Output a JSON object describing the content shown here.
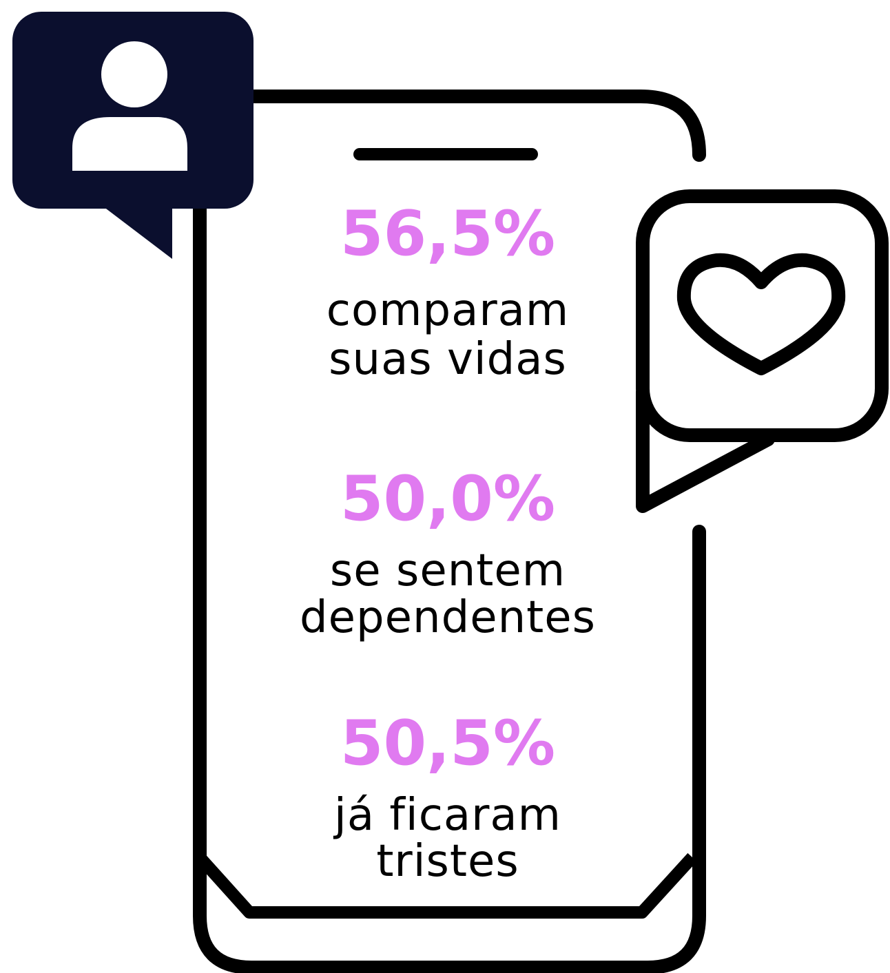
{
  "stats": [
    {
      "value": "56,5%",
      "lines": [
        "comparam",
        "suas vidas"
      ]
    },
    {
      "value": "50,0%",
      "lines": [
        "se sentem",
        "dependentes"
      ]
    },
    {
      "value": "50,5%",
      "lines": [
        "já ficaram",
        "tristes"
      ]
    }
  ]
}
